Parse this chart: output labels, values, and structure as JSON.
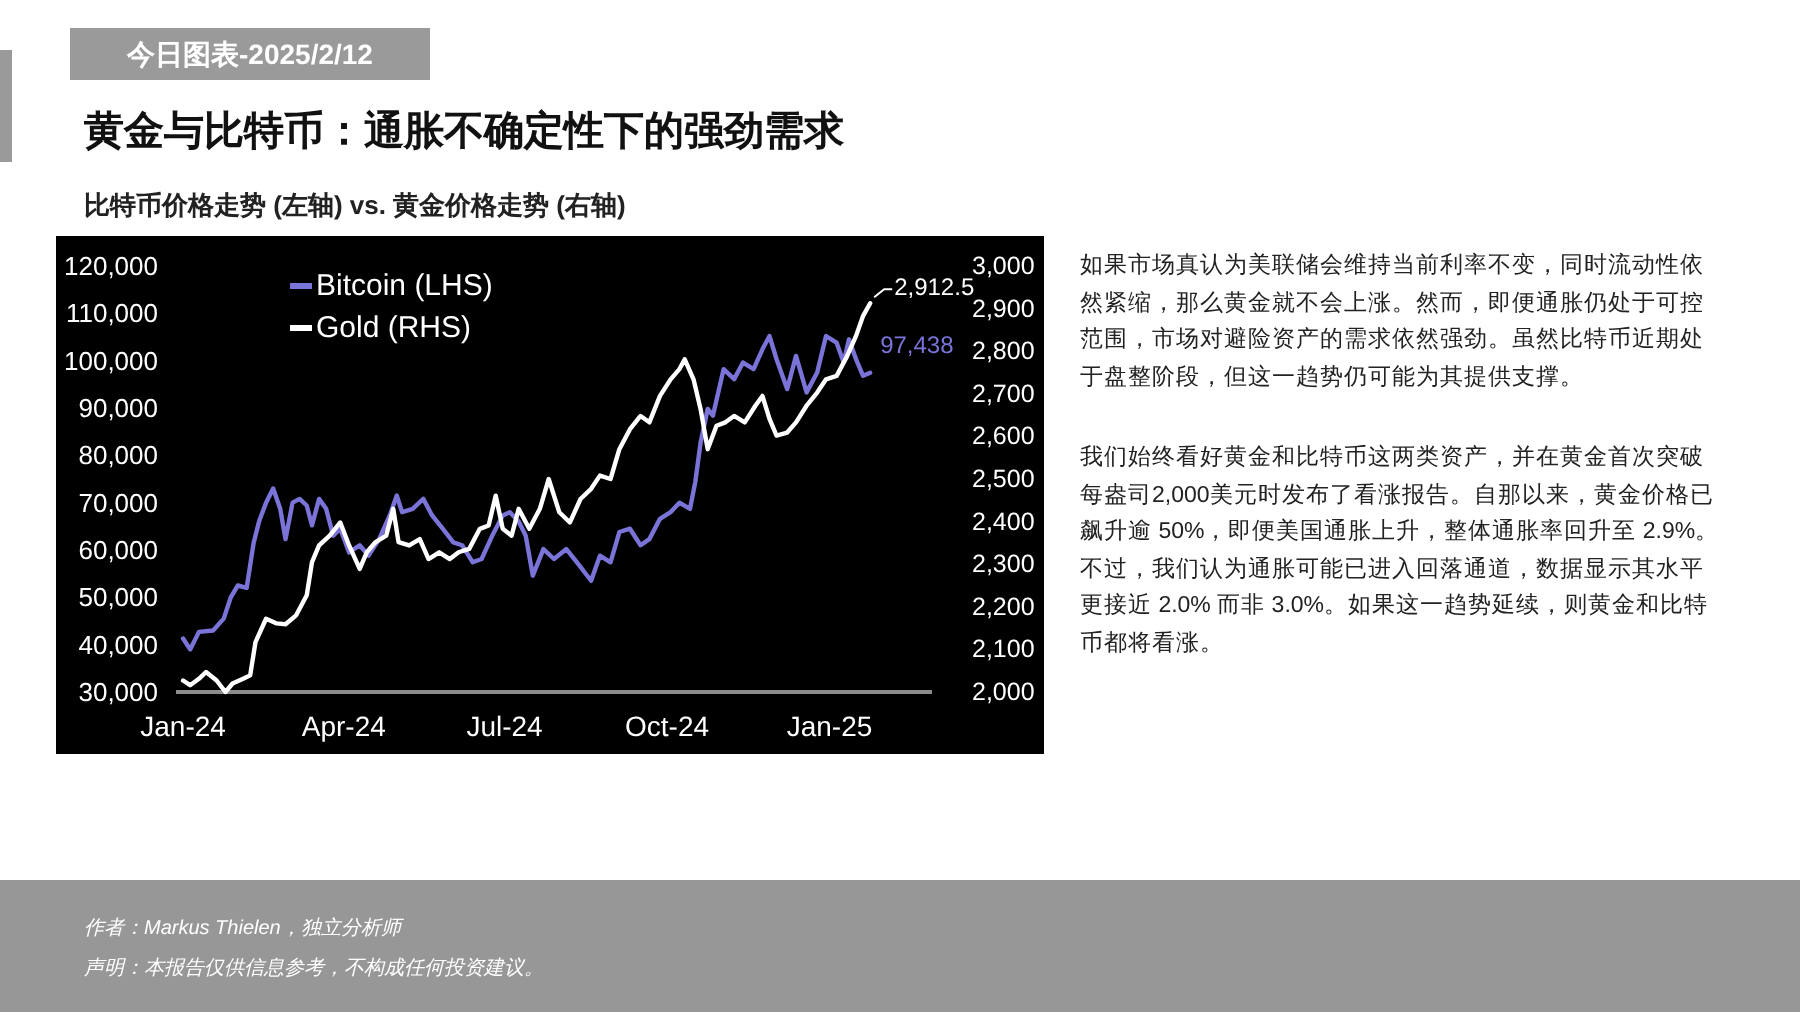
{
  "chart_data": {
    "type": "line",
    "title": "黄金与比特币：通胀不确定性下的强劲需求",
    "subtitle": "比特币价格走势 (左轴) vs. 黄金价格走势 (右轴)",
    "annotations": [
      "今日图表-2025/2/12",
      "如果市场真认为美联储会维持当前利率不变，同时流动性依然紧缩，那么黄金就不会上涨。然而，即便通胀仍处于可控范围，市场对避险资产的需求依然强劲。虽然比特币近期处于盘整阶段，但这一趋势仍可能为其提供支撑。",
      "我们始终看好黄金和比特币这两类资产，并在黄金首次突破每盎司2,000美元时发布了看涨报告。自那以来，黄金价格已飙升逾 50%，即便美国通胀上升，整体通胀率回升至 2.9%。不过，我们认为通胀可能已进入回落通道，数据显示其水平更接近 2.0% 而非 3.0%。如果这一趋势延续，则黄金和比特币都将看涨。",
      "作者：Markus Thielen，独立分析师",
      "声明：本报告仅供信息参考，不构成任何投资建议。"
    ],
    "legend": "top left",
    "xlim": [
      "2023-12-28",
      "2025-02-28"
    ],
    "xticks": [
      {
        "value": "2024-01-01",
        "label": "Jan-24"
      },
      {
        "value": "2024-04-01",
        "label": "Apr-24"
      },
      {
        "value": "2024-07-01",
        "label": "Jul-24"
      },
      {
        "value": "2024-10-01",
        "label": "Oct-24"
      },
      {
        "value": "2025-01-01",
        "label": "Jan-25"
      }
    ],
    "ylim": [
      30000,
      120000
    ],
    "yticks": [
      {
        "value": 30000,
        "label": "30,000"
      },
      {
        "value": 40000,
        "label": "40,000"
      },
      {
        "value": 50000,
        "label": "50,000"
      },
      {
        "value": 60000,
        "label": "60,000"
      },
      {
        "value": 70000,
        "label": "70,000"
      },
      {
        "value": 80000,
        "label": "80,000"
      },
      {
        "value": 90000,
        "label": "90,000"
      },
      {
        "value": 100000,
        "label": "100,000"
      },
      {
        "value": 110000,
        "label": "110,000"
      },
      {
        "value": 120000,
        "label": "120,000"
      }
    ],
    "y2lim": [
      2000,
      3000
    ],
    "y2ticks": [
      {
        "value": 2000,
        "label": "2,000"
      },
      {
        "value": 2100,
        "label": "2,100"
      },
      {
        "value": 2200,
        "label": "2,200"
      },
      {
        "value": 2300,
        "label": "2,300"
      },
      {
        "value": 2400,
        "label": "2,400"
      },
      {
        "value": 2500,
        "label": "2,500"
      },
      {
        "value": 2600,
        "label": "2,600"
      },
      {
        "value": 2700,
        "label": "2,700"
      },
      {
        "value": 2800,
        "label": "2,800"
      },
      {
        "value": 2900,
        "label": "2,900"
      },
      {
        "value": 3000,
        "label": "3,000"
      }
    ],
    "series": [
      {
        "name": "Bitcoin (LHS)",
        "color": "#7b74d8",
        "x": [
          "2024-01-01",
          "2024-01-05",
          "2024-01-10",
          "2024-01-18",
          "2024-01-24",
          "2024-01-28",
          "2024-02-01",
          "2024-02-06",
          "2024-02-10",
          "2024-02-13",
          "2024-02-17",
          "2024-02-21",
          "2024-02-25",
          "2024-02-28",
          "2024-03-03",
          "2024-03-07",
          "2024-03-11",
          "2024-03-14",
          "2024-03-18",
          "2024-03-22",
          "2024-03-26",
          "2024-03-30",
          "2024-04-04",
          "2024-04-10",
          "2024-04-15",
          "2024-04-21",
          "2024-04-27",
          "2024-05-01",
          "2024-05-04",
          "2024-05-10",
          "2024-05-16",
          "2024-05-21",
          "2024-05-27",
          "2024-06-02",
          "2024-06-07",
          "2024-06-13",
          "2024-06-18",
          "2024-06-24",
          "2024-06-30",
          "2024-07-04",
          "2024-07-09",
          "2024-07-13",
          "2024-07-17",
          "2024-07-23",
          "2024-07-29",
          "2024-08-05",
          "2024-08-11",
          "2024-08-19",
          "2024-08-24",
          "2024-08-30",
          "2024-09-04",
          "2024-09-10",
          "2024-09-16",
          "2024-09-21",
          "2024-09-27",
          "2024-10-03",
          "2024-10-08",
          "2024-10-14",
          "2024-10-17",
          "2024-10-20",
          "2024-10-24",
          "2024-10-27",
          "2024-11-02",
          "2024-11-08",
          "2024-11-13",
          "2024-11-19",
          "2024-11-24",
          "2024-11-28",
          "2024-12-02",
          "2024-12-08",
          "2024-12-13",
          "2024-12-19",
          "2024-12-25",
          "2024-12-30",
          "2025-01-05",
          "2025-01-09",
          "2025-01-12",
          "2025-01-16",
          "2025-01-20",
          "2025-01-24"
        ],
        "values": [
          41300,
          39000,
          42700,
          43000,
          45500,
          50000,
          52500,
          52000,
          61600,
          66000,
          70000,
          73000,
          68700,
          62300,
          70000,
          70800,
          69400,
          65200,
          70800,
          68700,
          63000,
          64500,
          59500,
          61000,
          58800,
          62300,
          67300,
          71500,
          68000,
          68700,
          70800,
          67300,
          64500,
          61600,
          61000,
          57400,
          58100,
          63000,
          67300,
          68000,
          66000,
          63000,
          54600,
          60200,
          58100,
          60200,
          57400,
          53500,
          58800,
          57400,
          63800,
          64500,
          61000,
          62300,
          66600,
          68000,
          70000,
          68700,
          74400,
          82700,
          89800,
          88400,
          98200,
          96100,
          99600,
          98200,
          102400,
          105200,
          100300,
          94000,
          101000,
          93300,
          97500,
          105200,
          103800,
          99600,
          104500,
          100300,
          96800,
          97438
        ],
        "value_labels": [
          null,
          null,
          null,
          null,
          null,
          null,
          null,
          null,
          null,
          null,
          null,
          null,
          null,
          null,
          null,
          null,
          null,
          null,
          null,
          null,
          null,
          null,
          null,
          null,
          null,
          null,
          null,
          null,
          null,
          null,
          null,
          null,
          null,
          null,
          null,
          null,
          null,
          null,
          null,
          null,
          null,
          null,
          null,
          null,
          null,
          null,
          null,
          null,
          null,
          null,
          null,
          null,
          null,
          null,
          null,
          null,
          null,
          null,
          null,
          null,
          null,
          null,
          null,
          null,
          null,
          null,
          null,
          null,
          null,
          null,
          null,
          null,
          null,
          null,
          null,
          null,
          null,
          null,
          null,
          "97,438"
        ]
      },
      {
        "name": "Gold (RHS)",
        "color": "#ffffff",
        "axis": "y2",
        "x": [
          "2024-01-01",
          "2024-01-05",
          "2024-01-10",
          "2024-01-14",
          "2024-01-20",
          "2024-01-25",
          "2024-01-29",
          "2024-02-04",
          "2024-02-08",
          "2024-02-11",
          "2024-02-17",
          "2024-02-23",
          "2024-02-28",
          "2024-03-05",
          "2024-03-11",
          "2024-03-14",
          "2024-03-18",
          "2024-03-24",
          "2024-03-30",
          "2024-04-04",
          "2024-04-10",
          "2024-04-14",
          "2024-04-19",
          "2024-04-25",
          "2024-04-29",
          "2024-05-02",
          "2024-05-08",
          "2024-05-14",
          "2024-05-19",
          "2024-05-25",
          "2024-05-31",
          "2024-06-05",
          "2024-06-11",
          "2024-06-17",
          "2024-06-22",
          "2024-06-26",
          "2024-06-30",
          "2024-07-05",
          "2024-07-09",
          "2024-07-15",
          "2024-07-21",
          "2024-07-26",
          "2024-08-01",
          "2024-08-07",
          "2024-08-13",
          "2024-08-19",
          "2024-08-24",
          "2024-08-30",
          "2024-09-04",
          "2024-09-10",
          "2024-09-16",
          "2024-09-21",
          "2024-09-27",
          "2024-10-03",
          "2024-10-08",
          "2024-10-11",
          "2024-10-16",
          "2024-10-20",
          "2024-10-24",
          "2024-10-29",
          "2024-11-03",
          "2024-11-08",
          "2024-11-14",
          "2024-11-20",
          "2024-11-24",
          "2024-11-28",
          "2024-12-02",
          "2024-12-08",
          "2024-12-13",
          "2024-12-19",
          "2024-12-25",
          "2024-12-30",
          "2025-01-05",
          "2025-01-11",
          "2025-01-16",
          "2025-01-20",
          "2025-01-24"
        ],
        "values": [
          2027,
          2016,
          2031,
          2047,
          2027,
          2000,
          2020,
          2031,
          2039,
          2117,
          2172,
          2161,
          2159,
          2180,
          2227,
          2305,
          2344,
          2367,
          2398,
          2344,
          2289,
          2328,
          2352,
          2367,
          2430,
          2352,
          2344,
          2359,
          2312,
          2328,
          2312,
          2328,
          2336,
          2383,
          2391,
          2461,
          2383,
          2367,
          2430,
          2383,
          2430,
          2500,
          2422,
          2398,
          2453,
          2477,
          2508,
          2500,
          2570,
          2617,
          2648,
          2633,
          2695,
          2734,
          2758,
          2781,
          2734,
          2664,
          2570,
          2625,
          2633,
          2648,
          2633,
          2672,
          2695,
          2641,
          2602,
          2609,
          2633,
          2672,
          2703,
          2734,
          2742,
          2789,
          2836,
          2883,
          2912.5
        ],
        "value_labels": [
          null,
          null,
          null,
          null,
          null,
          null,
          null,
          null,
          null,
          null,
          null,
          null,
          null,
          null,
          null,
          null,
          null,
          null,
          null,
          null,
          null,
          null,
          null,
          null,
          null,
          null,
          null,
          null,
          null,
          null,
          null,
          null,
          null,
          null,
          null,
          null,
          null,
          null,
          null,
          null,
          null,
          null,
          null,
          null,
          null,
          null,
          null,
          null,
          null,
          null,
          null,
          null,
          null,
          null,
          null,
          null,
          null,
          null,
          null,
          null,
          null,
          null,
          null,
          null,
          null,
          null,
          null,
          null,
          null,
          null,
          null,
          null,
          null,
          null,
          null,
          null,
          "2,912.5"
        ]
      }
    ]
  }
}
